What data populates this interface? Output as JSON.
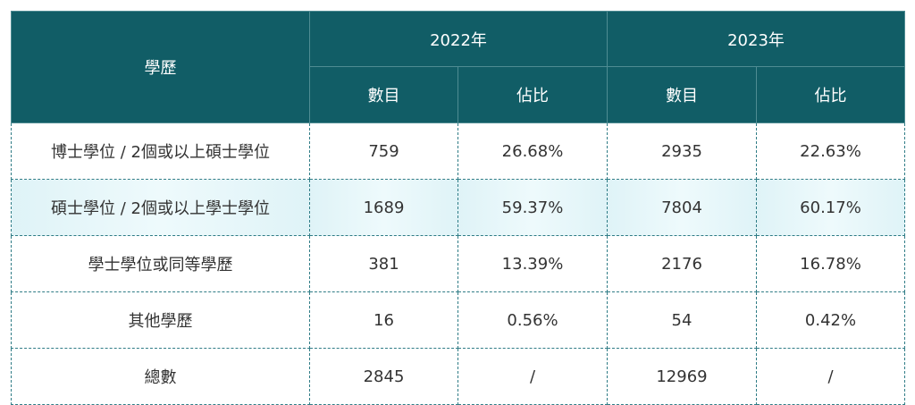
{
  "table": {
    "header": {
      "group_label": "學歷",
      "years": [
        "2022年",
        "2023年"
      ],
      "sub": [
        "數目",
        "佔比",
        "數目",
        "佔比"
      ]
    },
    "rows": [
      [
        "博士學位 / 2個或以上碩士學位",
        "759",
        "26.68%",
        "2935",
        "22.63%"
      ],
      [
        "碩士學位 / 2個或以上學士學位",
        "1689",
        "59.37%",
        "7804",
        "60.17%"
      ],
      [
        "學士學位或同等學歷",
        "381",
        "13.39%",
        "2176",
        "16.78%"
      ],
      [
        "其他學歷",
        "16",
        "0.56%",
        "54",
        "0.42%"
      ],
      [
        "總數",
        "2845",
        "/",
        "12969",
        "/"
      ]
    ]
  }
}
